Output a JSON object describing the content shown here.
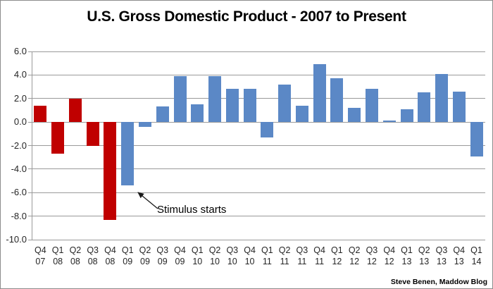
{
  "title": "U.S. Gross Domestic Product - 2007 to Present",
  "credit": "Steve Benen, Maddow Blog",
  "colors": {
    "recession_bar": "#C00000",
    "recovery_bar": "#5B88C6",
    "gridline": "#9A9A9A",
    "frame_border": "#8C8C8C",
    "text": "#262626"
  },
  "chart_data": {
    "type": "bar",
    "title": "U.S. Gross Domestic Product - 2007 to Present",
    "xlabel": "",
    "ylabel": "",
    "categories": [
      "Q4 07",
      "Q1 08",
      "Q2 08",
      "Q3 08",
      "Q4 08",
      "Q1 09",
      "Q2 09",
      "Q3 09",
      "Q4 09",
      "Q1 10",
      "Q2 10",
      "Q3 10",
      "Q4 10",
      "Q1 11",
      "Q2 11",
      "Q3 11",
      "Q4 11",
      "Q1 12",
      "Q2 12",
      "Q3 12",
      "Q4 12",
      "Q1 13",
      "Q2 13",
      "Q3 13",
      "Q4 13",
      "Q1 14"
    ],
    "values": [
      1.4,
      -2.7,
      2.0,
      -2.0,
      -8.3,
      -5.4,
      -0.4,
      1.3,
      3.9,
      1.5,
      3.9,
      2.8,
      2.8,
      -1.3,
      3.2,
      1.4,
      4.9,
      3.7,
      1.2,
      2.8,
      0.1,
      1.1,
      2.5,
      4.1,
      2.6,
      -2.9
    ],
    "bar_colors": [
      "red",
      "red",
      "red",
      "red",
      "red",
      "blue",
      "blue",
      "blue",
      "blue",
      "blue",
      "blue",
      "blue",
      "blue",
      "blue",
      "blue",
      "blue",
      "blue",
      "blue",
      "blue",
      "blue",
      "blue",
      "blue",
      "blue",
      "blue",
      "blue",
      "blue"
    ],
    "color_map": {
      "red": "#C00000",
      "blue": "#5B88C6"
    },
    "ylim": [
      -10,
      6
    ],
    "yticks": [
      "6.0",
      "4.0",
      "2.0",
      "0.0",
      "-2.0",
      "-4.0",
      "-6.0",
      "-8.0",
      "-10.0"
    ],
    "grid": true,
    "legend": "none",
    "annotation": {
      "text": "Stimulus starts",
      "target": "Q1 09"
    }
  }
}
